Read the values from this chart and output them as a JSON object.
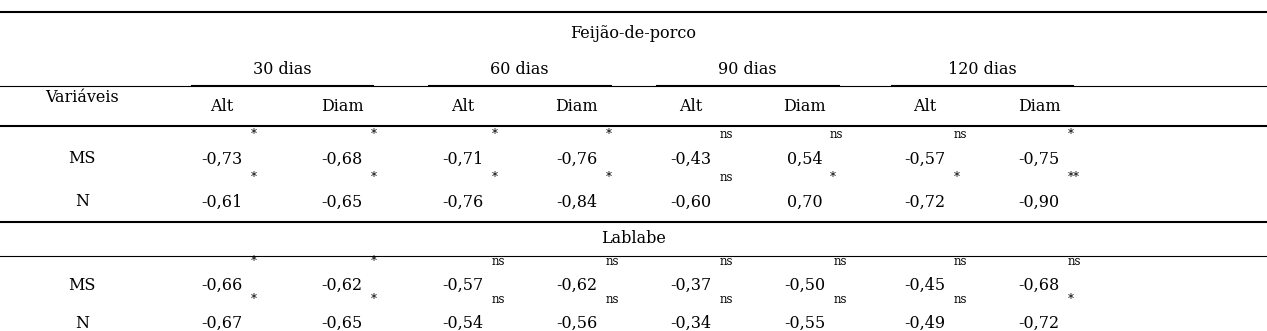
{
  "title_top": "Feijão-de-porco",
  "title_mid": "Lablabe",
  "col_header_days": [
    "30 dias",
    "60 dias",
    "90 dias",
    "120 dias"
  ],
  "col_header_sub": [
    "Alt",
    "Diam",
    "Alt",
    "Diam",
    "Alt",
    "Diam",
    "Alt",
    "Diam"
  ],
  "row_label_col": "Variáveis",
  "sections": [
    {
      "label": "Feijão-de-porco",
      "rows": [
        {
          "var": "MS",
          "values": [
            "-0,73",
            "-0,68",
            "-0,71",
            "-0,76",
            "-0,43",
            "0,54",
            "-0,57",
            "-0,75"
          ],
          "sups": [
            "*",
            "*",
            "*",
            "*",
            "ns",
            "ns",
            "ns",
            "*"
          ]
        },
        {
          "var": "N",
          "values": [
            "-0,61",
            "-0,65",
            "-0,76",
            "-0,84",
            "-0,60",
            "0,70",
            "-0,72",
            "-0,90"
          ],
          "sups": [
            "*",
            "*",
            "*",
            "*",
            "ns",
            "*",
            "*",
            "**"
          ]
        }
      ]
    },
    {
      "label": "Lablabe",
      "rows": [
        {
          "var": "MS",
          "values": [
            "-0,66",
            "-0,62",
            "-0,57",
            "-0,62",
            "-0,37",
            "-0,50",
            "-0,45",
            "-0,68"
          ],
          "sups": [
            "*",
            "*",
            "ns",
            "ns",
            "ns",
            "ns",
            "ns",
            "ns"
          ]
        },
        {
          "var": "N",
          "values": [
            "-0,67",
            "-0,65",
            "-0,54",
            "-0,56",
            "-0,34",
            "-0,55",
            "-0,49",
            "-0,72"
          ],
          "sups": [
            "*",
            "*",
            "ns",
            "ns",
            "ns",
            "ns",
            "ns",
            "*"
          ]
        }
      ]
    }
  ],
  "fig_width": 12.67,
  "fig_height": 3.31,
  "dpi": 100,
  "bg_color": "#ffffff",
  "text_color": "#000000",
  "font_size": 11.5,
  "sup_font_size": 8.5,
  "header_font_size": 11.5
}
